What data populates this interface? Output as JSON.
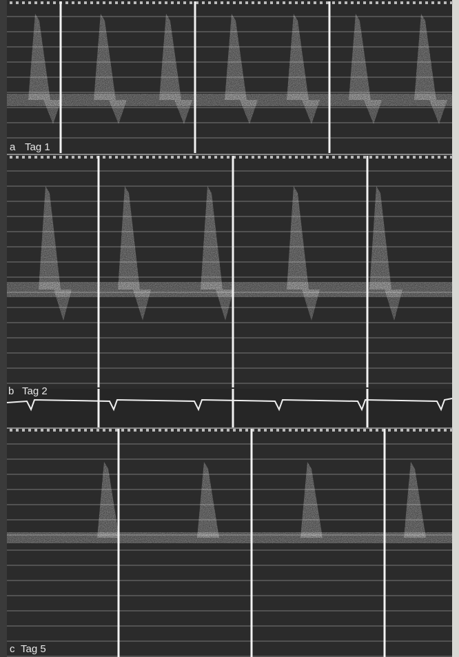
{
  "panels": [
    {
      "letter": "a",
      "label": "Tag 1"
    },
    {
      "letter": "b",
      "label": "Tag 2"
    },
    {
      "letter": "c",
      "label": "Tag 5"
    }
  ]
}
